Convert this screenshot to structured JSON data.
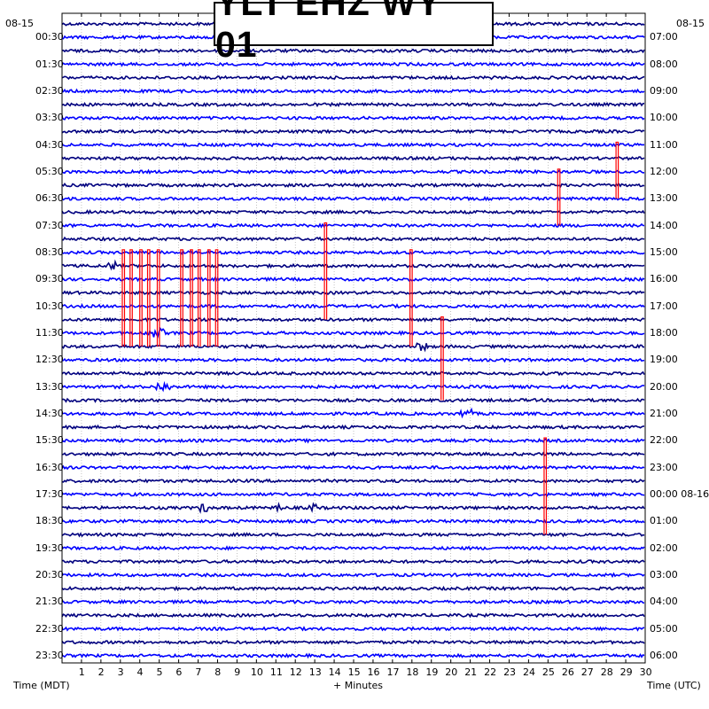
{
  "title": "YLT EHZ WY 01",
  "left_date": "08-15",
  "right_date": "08-15",
  "left_axis_title": "Time (MDT)",
  "right_axis_title": "Time (UTC)",
  "x_axis_title": "+ Minutes",
  "colors": {
    "trace_a": "#00007f",
    "trace_b": "#0000ff",
    "event": "#ff0000",
    "grid": "#9a9a9a"
  },
  "chart_data": {
    "type": "helicorder",
    "title": "YLT EHZ WY 01",
    "xlabel": "+ Minutes",
    "ylabel_left": "Time (MDT)",
    "ylabel_right": "Time (UTC)",
    "xlim": [
      0,
      30
    ],
    "x_ticks": [
      "1",
      "2",
      "3",
      "4",
      "5",
      "6",
      "7",
      "8",
      "9",
      "10",
      "11",
      "12",
      "13",
      "14",
      "15",
      "16",
      "17",
      "18",
      "19",
      "20",
      "21",
      "22",
      "23",
      "24",
      "25",
      "26",
      "27",
      "28",
      "29",
      "30"
    ],
    "traces_per_hour": 2,
    "trace_count": 48,
    "left_tick_labels": [
      "00:30",
      "01:30",
      "02:30",
      "03:30",
      "04:30",
      "05:30",
      "06:30",
      "07:30",
      "08:30",
      "09:30",
      "10:30",
      "11:30",
      "12:30",
      "13:30",
      "14:30",
      "15:30",
      "16:30",
      "17:30",
      "18:30",
      "19:30",
      "20:30",
      "21:30",
      "22:30",
      "23:30"
    ],
    "right_tick_labels": [
      "07:00",
      "08:00",
      "09:00",
      "10:00",
      "11:00",
      "12:00",
      "13:00",
      "14:00",
      "15:00",
      "16:00",
      "17:00",
      "18:00",
      "19:00",
      "20:00",
      "21:00",
      "22:00",
      "23:00",
      "00:00 08-16",
      "01:00",
      "02:00",
      "03:00",
      "04:00",
      "05:00",
      "06:00"
    ],
    "events_red": [
      {
        "trace": 17,
        "minute": 3.1,
        "span_traces": 7
      },
      {
        "trace": 17,
        "minute": 3.5,
        "span_traces": 7
      },
      {
        "trace": 17,
        "minute": 4.0,
        "span_traces": 7
      },
      {
        "trace": 17,
        "minute": 4.4,
        "span_traces": 7
      },
      {
        "trace": 17,
        "minute": 4.9,
        "span_traces": 7
      },
      {
        "trace": 17,
        "minute": 6.1,
        "span_traces": 7
      },
      {
        "trace": 17,
        "minute": 6.6,
        "span_traces": 7
      },
      {
        "trace": 17,
        "minute": 7.0,
        "span_traces": 7
      },
      {
        "trace": 17,
        "minute": 7.5,
        "span_traces": 7
      },
      {
        "trace": 17,
        "minute": 7.9,
        "span_traces": 7
      },
      {
        "trace": 15,
        "minute": 13.5,
        "span_traces": 7
      },
      {
        "trace": 17,
        "minute": 17.9,
        "span_traces": 7
      },
      {
        "trace": 22,
        "minute": 19.5,
        "span_traces": 6
      },
      {
        "trace": 11,
        "minute": 25.5,
        "span_traces": 4
      },
      {
        "trace": 9,
        "minute": 28.5,
        "span_traces": 4
      },
      {
        "trace": 31,
        "minute": 24.8,
        "span_traces": 7
      }
    ]
  }
}
